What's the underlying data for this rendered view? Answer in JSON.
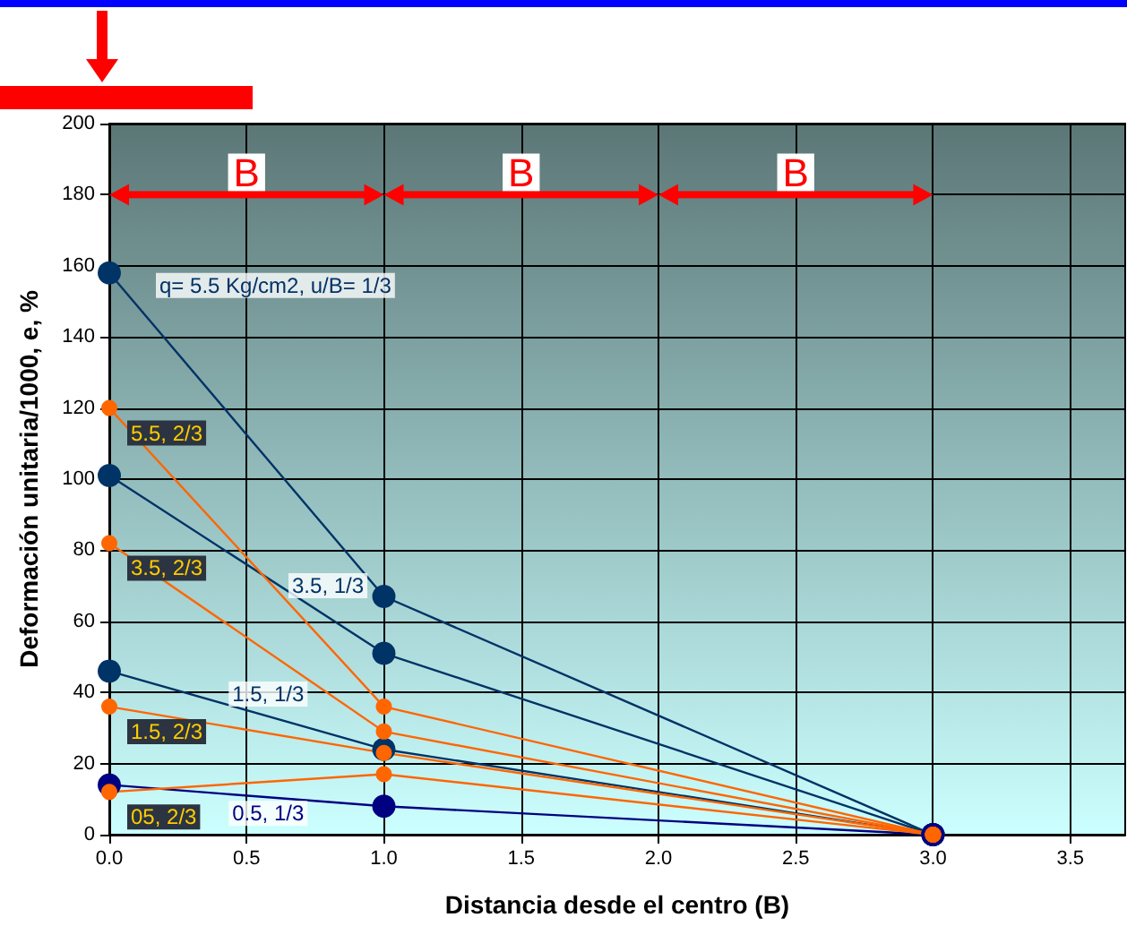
{
  "chart_data": {
    "type": "line",
    "xlabel": "Distancia desde el centro (B)",
    "ylabel": "Deformación unitaria/1000, e, %",
    "x": [
      0,
      1,
      3
    ],
    "series": [
      {
        "name": "q= 5.5 Kg/cm2, u/B= 1/3",
        "color": "#003366",
        "values": [
          158,
          67,
          0
        ]
      },
      {
        "name": "3.5, 1/3",
        "color": "#003366",
        "values": [
          101,
          51,
          0
        ]
      },
      {
        "name": "1.5, 1/3",
        "color": "#003366",
        "values": [
          46,
          24,
          0
        ]
      },
      {
        "name": "0.5, 1/3",
        "color": "#000080",
        "values": [
          14,
          8,
          0
        ]
      },
      {
        "name": "5.5, 2/3",
        "color": "#ff6600",
        "values": [
          120,
          36,
          0
        ]
      },
      {
        "name": "3.5, 2/3",
        "color": "#ff6600",
        "values": [
          82,
          29,
          0
        ]
      },
      {
        "name": "1.5, 2/3",
        "color": "#ff6600",
        "values": [
          36,
          23,
          0
        ]
      },
      {
        "name": "05, 2/3",
        "color": "#ff6600",
        "values": [
          12,
          17,
          0
        ]
      }
    ],
    "annotations": [
      "B",
      "B",
      "B"
    ],
    "xlim": [
      0,
      3.7
    ],
    "xticks": [
      {
        "value": 0,
        "label": "0.0"
      },
      {
        "value": 0.5,
        "label": "0.5"
      },
      {
        "value": 1,
        "label": "1.0"
      },
      {
        "value": 1.5,
        "label": "1.5"
      },
      {
        "value": 2,
        "label": "2.0"
      },
      {
        "value": 2.5,
        "label": "2.5"
      },
      {
        "value": 3,
        "label": "3.0"
      },
      {
        "value": 3.5,
        "label": "3.5"
      }
    ],
    "ylim": [
      0,
      200
    ],
    "yticks": [
      0,
      20,
      40,
      60,
      80,
      100,
      120,
      140,
      160,
      180,
      200
    ],
    "grid": true,
    "legend": false,
    "marker": "circle",
    "line_style": "solid"
  }
}
